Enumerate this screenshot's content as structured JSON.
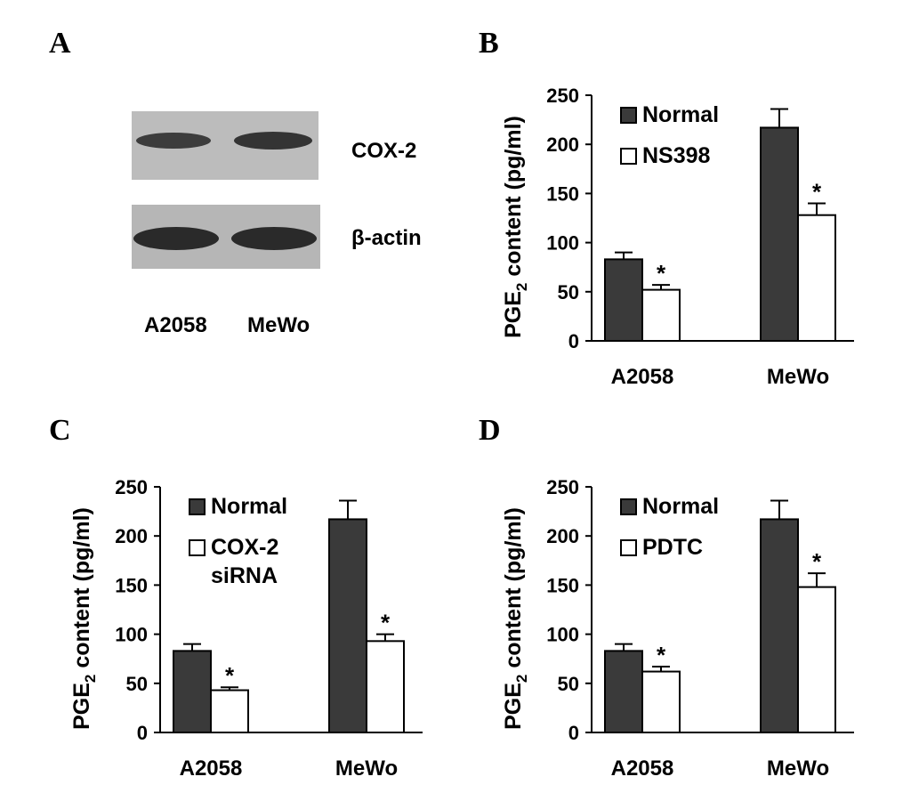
{
  "panels": {
    "a": {
      "letter": "A",
      "protein_labels": [
        "COX-2",
        "β-actin"
      ],
      "lane_labels": [
        "A2058",
        "MeWo"
      ]
    },
    "b": {
      "letter": "B"
    },
    "c": {
      "letter": "C"
    },
    "d": {
      "letter": "D"
    }
  },
  "colors": {
    "normal": "#3a3a3a",
    "treated": "#ffffff",
    "blot_bg": "#b9b9b9",
    "band": "#2e2e2e"
  },
  "chart_data": [
    {
      "type": "bar",
      "panel": "B",
      "categories": [
        "A2058",
        "MeWo"
      ],
      "series": [
        {
          "name": "Normal",
          "values": [
            83,
            217
          ],
          "errors": [
            7,
            19
          ]
        },
        {
          "name": "NS398",
          "values": [
            52,
            128
          ],
          "errors": [
            5,
            12
          ]
        }
      ],
      "significance": [
        [
          "",
          "*"
        ],
        [
          "",
          "*"
        ]
      ],
      "ylabel_main": "PGE",
      "ylabel_sub": "2",
      "ylabel_rest": " content (pg/ml)",
      "yticks": [
        0,
        50,
        100,
        150,
        200,
        250
      ],
      "ylim": [
        0,
        250
      ],
      "legend_position": "top-left"
    },
    {
      "type": "bar",
      "panel": "C",
      "categories": [
        "A2058",
        "MeWo"
      ],
      "series": [
        {
          "name": "Normal",
          "values": [
            83,
            217
          ],
          "errors": [
            7,
            19
          ]
        },
        {
          "name": "COX-2 siRNA",
          "name_lines": [
            "COX-2",
            "siRNA"
          ],
          "values": [
            43,
            93
          ],
          "errors": [
            3,
            7
          ]
        }
      ],
      "significance": [
        [
          "",
          "*"
        ],
        [
          "",
          "*"
        ]
      ],
      "ylabel_main": "PGE",
      "ylabel_sub": "2",
      "ylabel_rest": " content (pg/ml)",
      "yticks": [
        0,
        50,
        100,
        150,
        200,
        250
      ],
      "ylim": [
        0,
        250
      ],
      "legend_position": "top-left"
    },
    {
      "type": "bar",
      "panel": "D",
      "categories": [
        "A2058",
        "MeWo"
      ],
      "series": [
        {
          "name": "Normal",
          "values": [
            83,
            217
          ],
          "errors": [
            7,
            19
          ]
        },
        {
          "name": "PDTC",
          "values": [
            62,
            148
          ],
          "errors": [
            5,
            14
          ]
        }
      ],
      "significance": [
        [
          "",
          "*"
        ],
        [
          "",
          "*"
        ]
      ],
      "ylabel_main": "PGE",
      "ylabel_sub": "2",
      "ylabel_rest": " content (pg/ml)",
      "yticks": [
        0,
        50,
        100,
        150,
        200,
        250
      ],
      "ylim": [
        0,
        250
      ],
      "legend_position": "top-left"
    }
  ]
}
